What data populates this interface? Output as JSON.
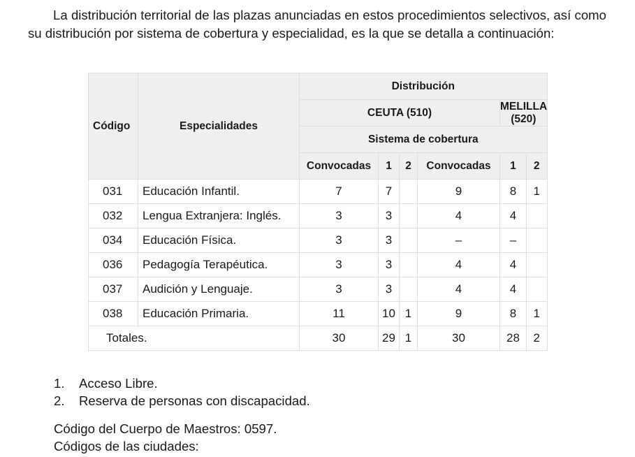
{
  "intro": "La distribución territorial de las plazas anunciadas en estos procedimientos selectivos, así como su distribución por sistema de cobertura y especialidad, es la que se detalla a continuación:",
  "table": {
    "headers": {
      "codigo": "Código",
      "especialidades": "Especialidades",
      "distribucion": "Distribución",
      "ceuta": "CEUTA (510)",
      "melilla": "MELILLA (520)",
      "sistema": "Sistema de cobertura",
      "convocadas": "Convocadas",
      "s1": "1",
      "s2": "2"
    },
    "rows": [
      {
        "code": "031",
        "name": "Educación Infantil.",
        "c_conv": "7",
        "c_1": "7",
        "c_2": "",
        "m_conv": "9",
        "m_1": "8",
        "m_2": "1"
      },
      {
        "code": "032",
        "name": "Lengua Extranjera: Inglés.",
        "c_conv": "3",
        "c_1": "3",
        "c_2": "",
        "m_conv": "4",
        "m_1": "4",
        "m_2": ""
      },
      {
        "code": "034",
        "name": "Educación Física.",
        "c_conv": "3",
        "c_1": "3",
        "c_2": "",
        "m_conv": "–",
        "m_1": "–",
        "m_2": ""
      },
      {
        "code": "036",
        "name": "Pedagogía Terapéutica.",
        "c_conv": "3",
        "c_1": "3",
        "c_2": "",
        "m_conv": "4",
        "m_1": "4",
        "m_2": ""
      },
      {
        "code": "037",
        "name": "Audición y Lenguaje.",
        "c_conv": "3",
        "c_1": "3",
        "c_2": "",
        "m_conv": "4",
        "m_1": "4",
        "m_2": ""
      },
      {
        "code": "038",
        "name": "Educación Primaria.",
        "c_conv": "11",
        "c_1": "10",
        "c_2": "1",
        "m_conv": "9",
        "m_1": "8",
        "m_2": "1"
      }
    ],
    "totals": {
      "label": "Totales.",
      "c_conv": "30",
      "c_1": "29",
      "c_2": "1",
      "m_conv": "30",
      "m_1": "28",
      "m_2": "2"
    }
  },
  "notes": [
    {
      "n": "1.",
      "text": "Acceso Libre."
    },
    {
      "n": "2.",
      "text": "Reserva de personas con discapacidad."
    }
  ],
  "cuerpo": "Código del Cuerpo de Maestros: 0597.",
  "ciudades": "Códigos de las ciudades:"
}
